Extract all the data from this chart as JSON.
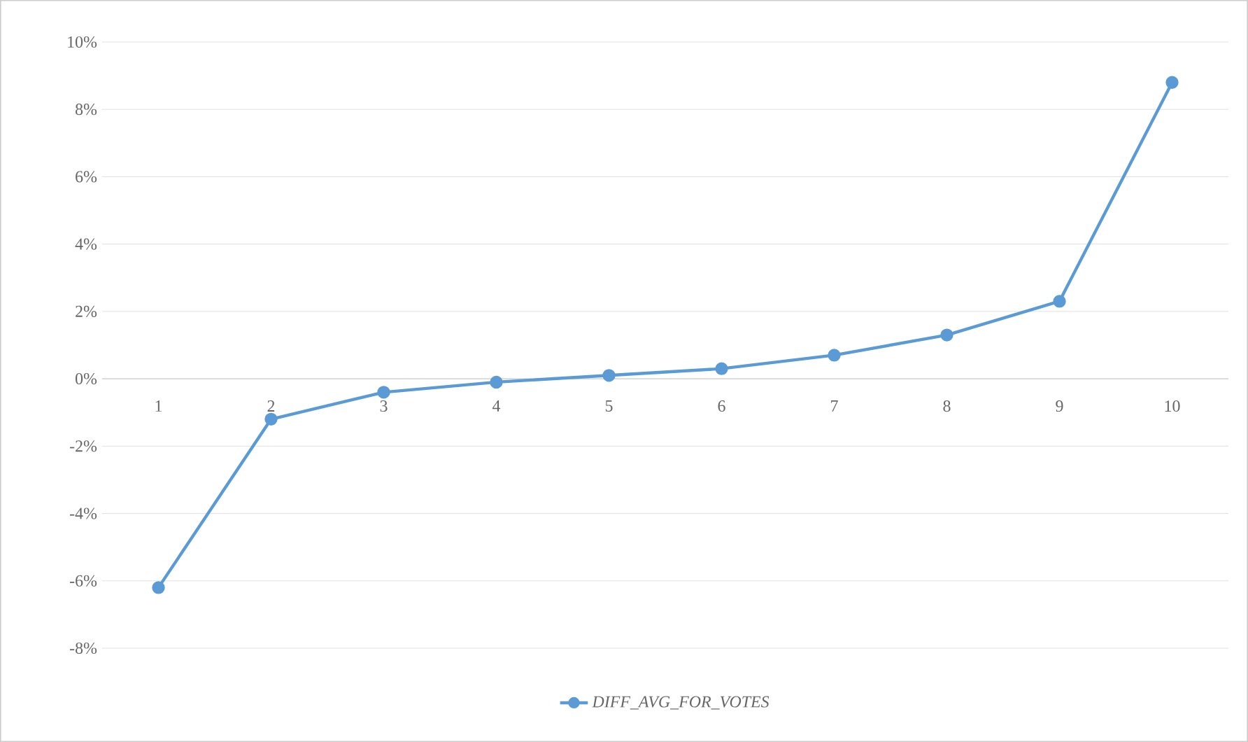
{
  "chart_data": {
    "type": "line",
    "categories": [
      "1",
      "2",
      "3",
      "4",
      "5",
      "6",
      "7",
      "8",
      "9",
      "10"
    ],
    "series": [
      {
        "name": "DIFF_AVG_FOR_VOTES",
        "color": "#5b9bd5",
        "values": [
          -6.2,
          -1.2,
          -0.4,
          -0.1,
          0.1,
          0.3,
          0.7,
          1.3,
          2.3,
          8.8
        ]
      }
    ],
    "ylim": [
      -8,
      10
    ],
    "yticks": [
      {
        "value": -8,
        "label": "-8%"
      },
      {
        "value": -6,
        "label": "-6%"
      },
      {
        "value": -4,
        "label": "-4%"
      },
      {
        "value": -2,
        "label": "-2%"
      },
      {
        "value": 0,
        "label": "0%"
      },
      {
        "value": 2,
        "label": "2%"
      },
      {
        "value": 4,
        "label": "4%"
      },
      {
        "value": 6,
        "label": "6%"
      },
      {
        "value": 8,
        "label": "8%"
      },
      {
        "value": 10,
        "label": "10%"
      }
    ],
    "grid": "y",
    "legend": "bottom",
    "marker": "circle",
    "line_style": "solid"
  }
}
